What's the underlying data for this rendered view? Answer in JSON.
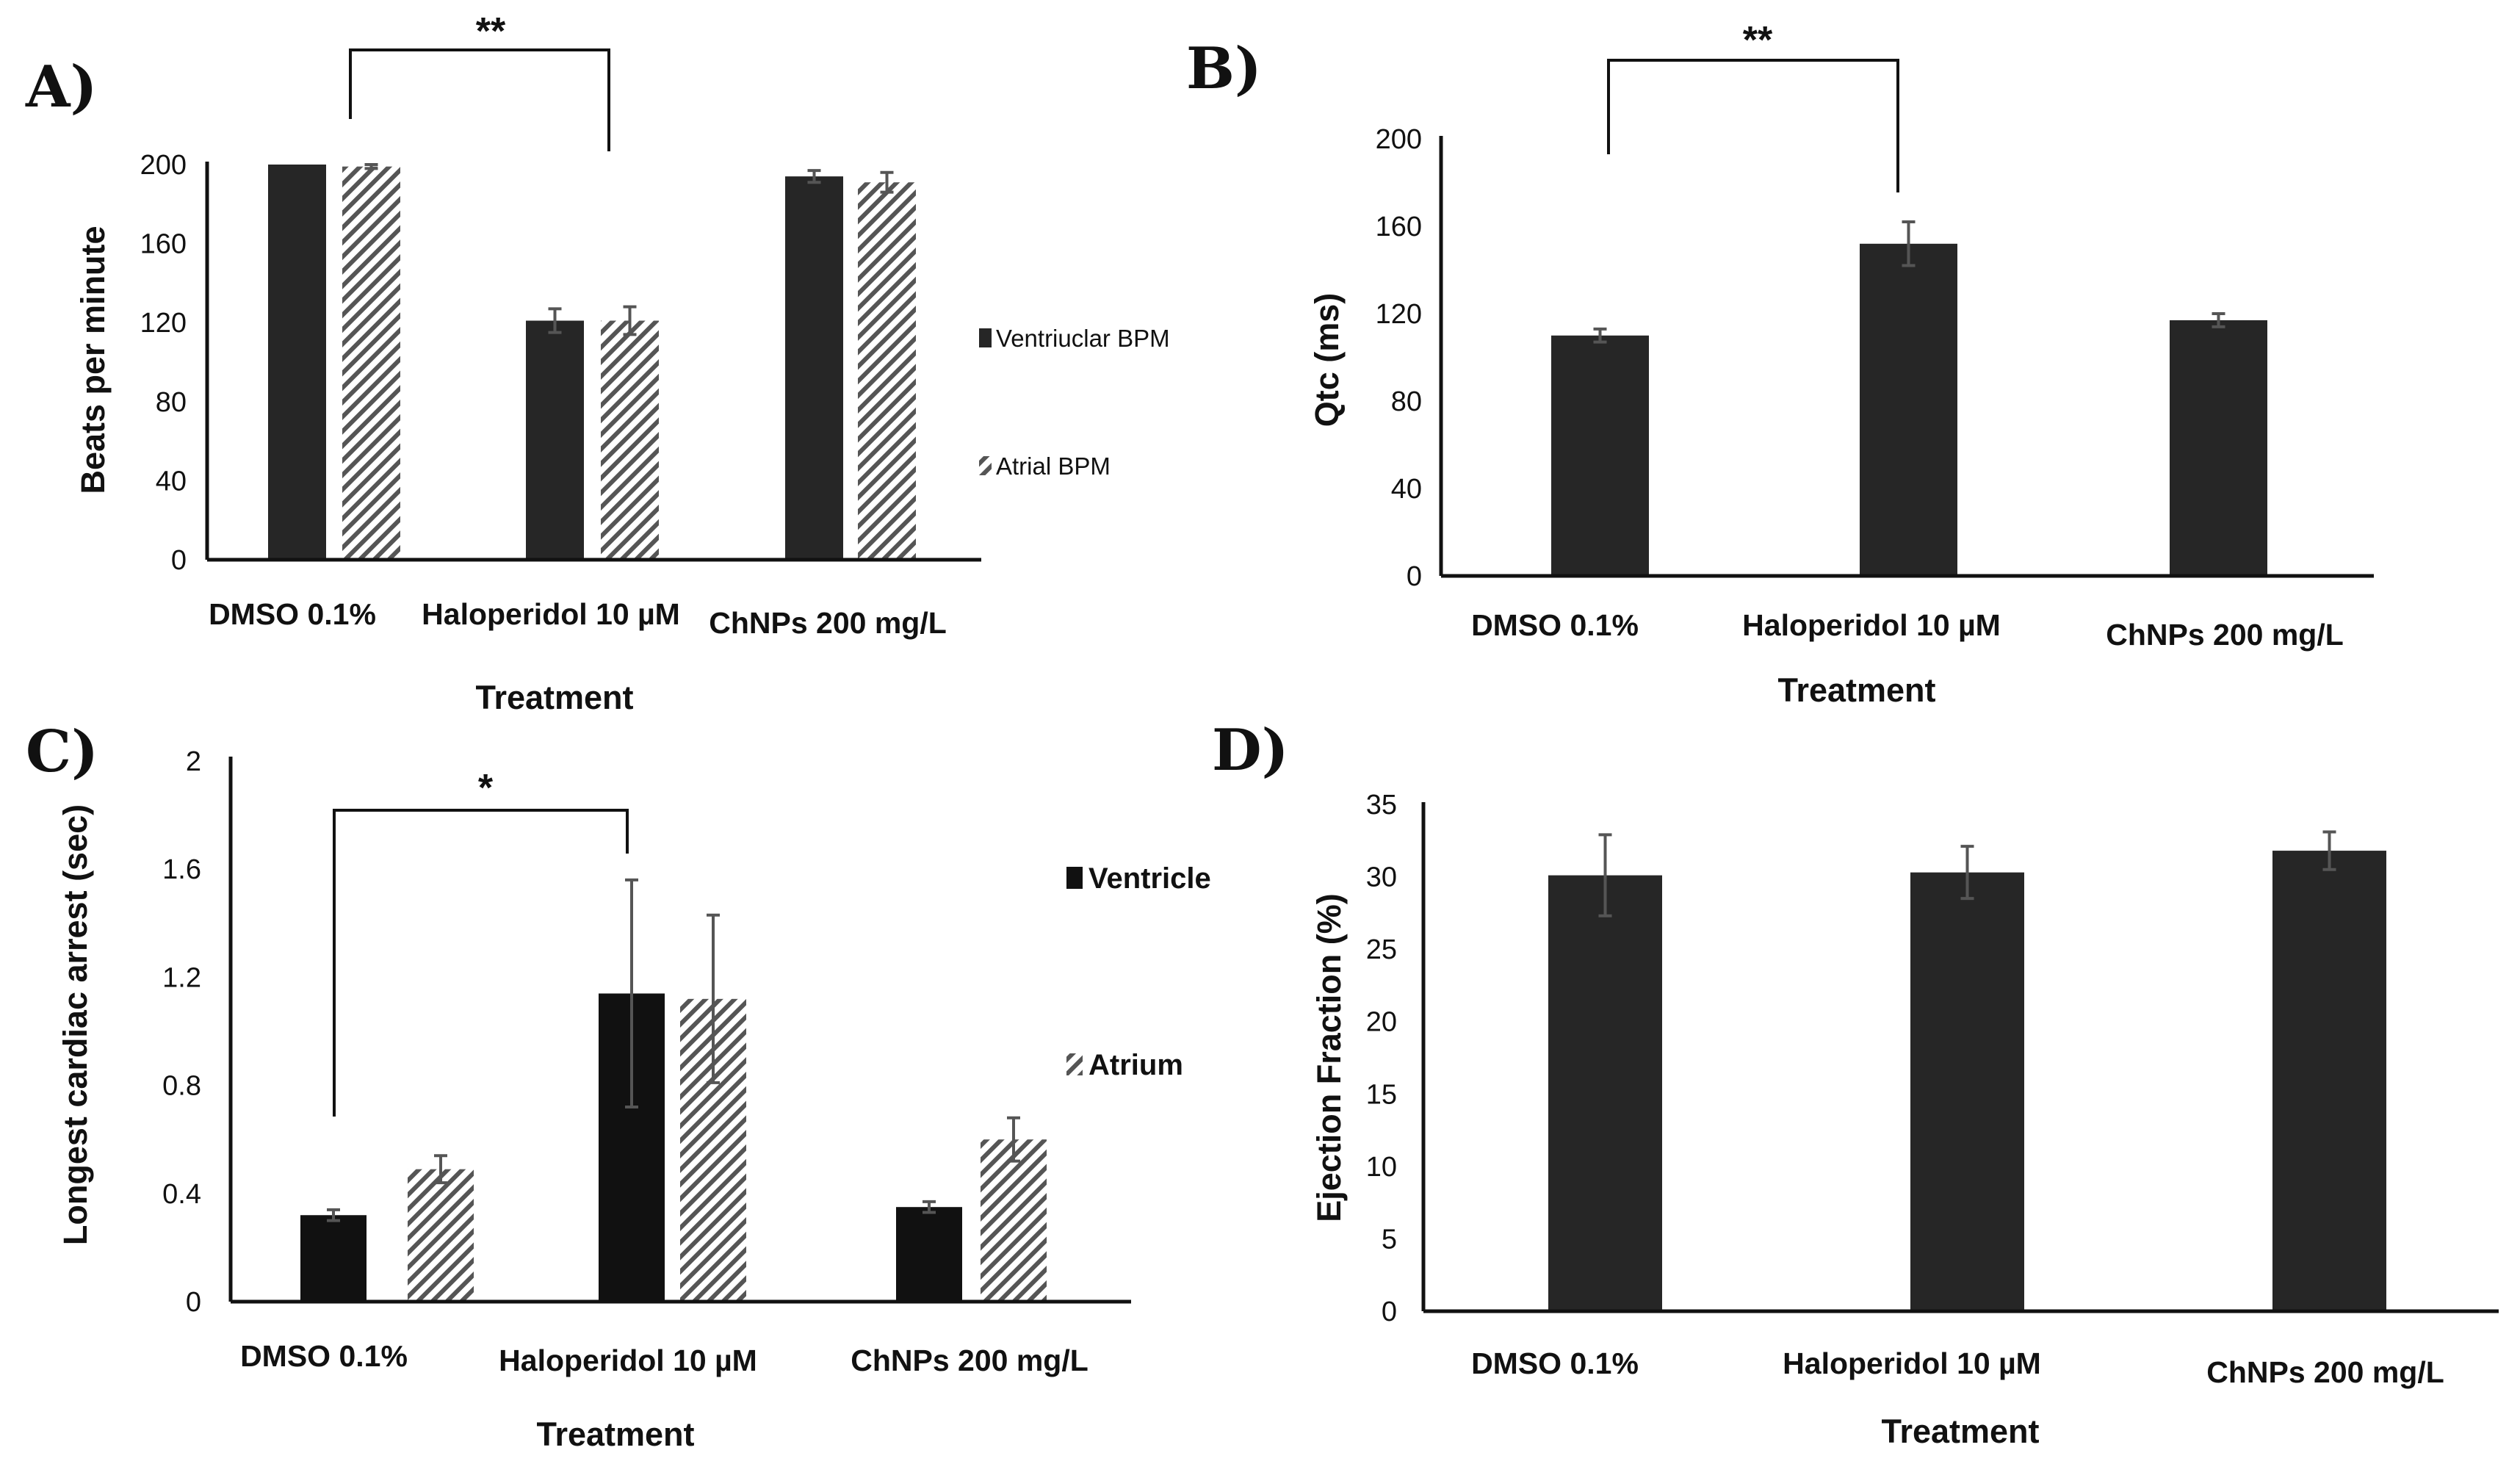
{
  "colors": {
    "solid": "#262626",
    "hatch_stripe": "#555555",
    "hatch_bg": "#ffffff",
    "axis": "#111111",
    "error": "#555555"
  },
  "chart_data": [
    {
      "id": "A",
      "panel_label": "A)",
      "type": "bar",
      "categories": [
        "DMSO 0.1%",
        "Haloperidol 10 µM",
        "ChNPs 200 mg/L"
      ],
      "series": [
        {
          "name": "Ventriuclar BPM",
          "pattern": "solid",
          "values": [
            200,
            121,
            194
          ],
          "errors": [
            0,
            6,
            3
          ]
        },
        {
          "name": "Atrial BPM",
          "pattern": "hatch",
          "values": [
            199,
            121,
            191
          ],
          "errors": [
            1,
            7,
            5
          ]
        }
      ],
      "xlabel": "Treatment",
      "ylabel": "Beats per minute",
      "ylim": [
        0,
        200
      ],
      "yticks": [
        "0",
        "40",
        "80",
        "120",
        "160",
        "200"
      ],
      "legend_position": "right",
      "significance": {
        "label": "**",
        "from_category": 0,
        "to_category": 1
      }
    },
    {
      "id": "B",
      "panel_label": "B)",
      "type": "bar",
      "categories": [
        "DMSO 0.1%",
        "Haloperidol 10 µM",
        "ChNPs 200 mg/L"
      ],
      "series": [
        {
          "name": "Qtc",
          "pattern": "solid",
          "values": [
            110,
            152,
            117
          ],
          "errors": [
            3,
            10,
            3
          ]
        }
      ],
      "xlabel": "Treatment",
      "ylabel": "Qtc (ms)",
      "ylim": [
        0,
        200
      ],
      "yticks": [
        "0",
        "40",
        "80",
        "120",
        "160",
        "200"
      ],
      "significance": {
        "label": "**",
        "from_category": 0,
        "to_category": 1
      }
    },
    {
      "id": "C",
      "panel_label": "C)",
      "type": "bar",
      "categories": [
        "DMSO 0.1%",
        "Haloperidol 10 µM",
        "ChNPs 200 mg/L"
      ],
      "series": [
        {
          "name": "Ventricle",
          "pattern": "solid",
          "values": [
            0.32,
            1.14,
            0.35
          ],
          "errors": [
            0.02,
            0.42,
            0.02
          ]
        },
        {
          "name": "Atrium",
          "pattern": "hatch",
          "values": [
            0.49,
            1.12,
            0.6
          ],
          "errors": [
            0.05,
            0.31,
            0.08
          ]
        }
      ],
      "xlabel": "Treatment",
      "ylabel": "Longest cardiac arrest (sec)",
      "ylim": [
        0,
        2
      ],
      "yticks": [
        "0",
        "0.4",
        "0.8",
        "1.2",
        "1.6",
        "2"
      ],
      "legend_position": "right",
      "significance": {
        "label": "*",
        "from_category": 0,
        "to_category": 1
      }
    },
    {
      "id": "D",
      "panel_label": "D)",
      "type": "bar",
      "categories": [
        "DMSO 0.1%",
        "Haloperidol 10 µM",
        "ChNPs 200 mg/L"
      ],
      "series": [
        {
          "name": "Ejection Fraction",
          "pattern": "solid",
          "values": [
            30.1,
            30.3,
            31.8
          ],
          "errors": [
            2.8,
            1.8,
            1.3
          ]
        }
      ],
      "xlabel": "Treatment",
      "ylabel": "Ejection Fraction (%)",
      "ylim": [
        0,
        35
      ],
      "yticks": [
        "0",
        "5",
        "10",
        "15",
        "20",
        "25",
        "30",
        "35"
      ]
    }
  ]
}
